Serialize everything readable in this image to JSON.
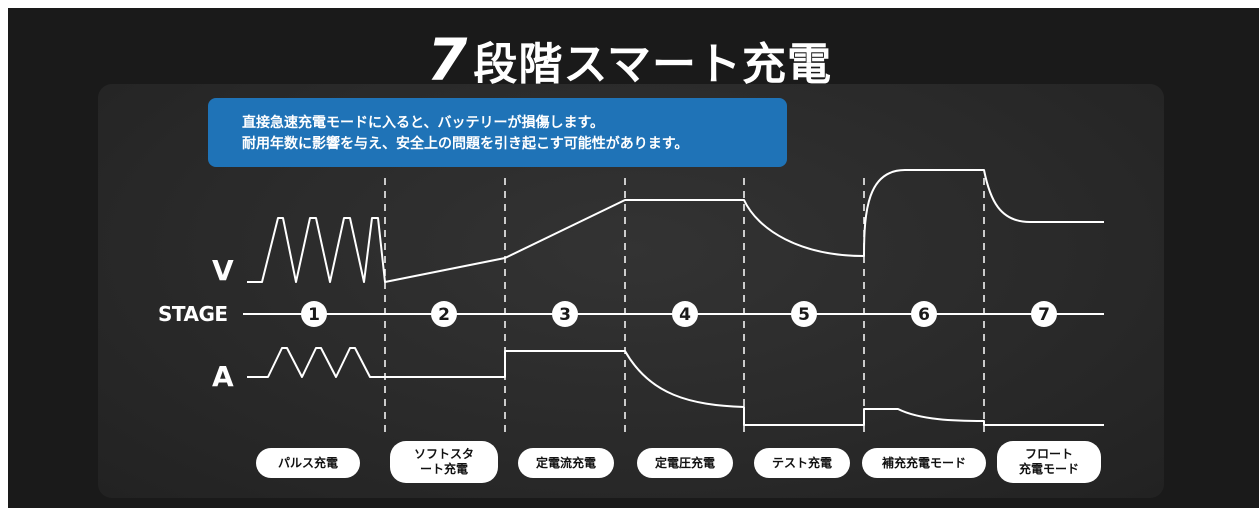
{
  "title": {
    "number": "7",
    "text": "段階スマート充電"
  },
  "warning": {
    "line1": "直接急速充電モードに入ると、バッテリーが損傷します。",
    "line2": "耐用年数に影響を与え、安全上の問題を引き起こす可能性があります。"
  },
  "axes": {
    "voltage": "V",
    "stage": "STAGE",
    "current": "A"
  },
  "stages": [
    {
      "number": "1",
      "label": "パルス充電"
    },
    {
      "number": "2",
      "label_line1": "ソフトスタ",
      "label_line2": "ート充電"
    },
    {
      "number": "3",
      "label": "定電流充電"
    },
    {
      "number": "4",
      "label": "定電圧充電"
    },
    {
      "number": "5",
      "label": "テスト充電"
    },
    {
      "number": "6",
      "label": "補充充電モード"
    },
    {
      "number": "7",
      "label_line1": "フロート",
      "label_line2": "充電モード"
    }
  ],
  "colors": {
    "background": "#1a1a1a",
    "panel": "#2a2a2a",
    "banner": "#1f73b7",
    "line": "#ffffff"
  }
}
